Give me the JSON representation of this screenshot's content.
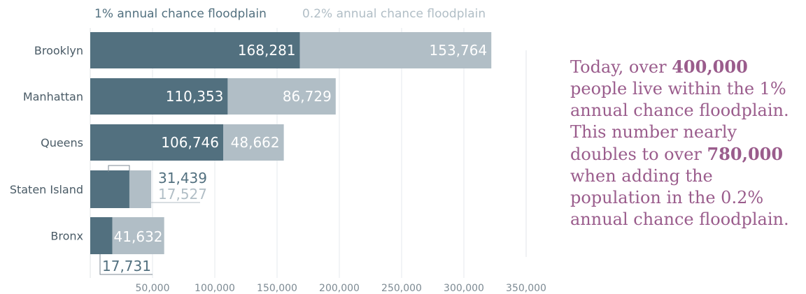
{
  "chart_data": {
    "type": "bar",
    "orientation": "horizontal",
    "stacked": true,
    "categories": [
      "Brooklyn",
      "Manhattan",
      "Queens",
      "Staten Island",
      "Bronx"
    ],
    "series": [
      {
        "name": "1% annual chance floodplain",
        "values": [
          168281,
          110353,
          106746,
          31439,
          17731
        ],
        "color": "#52707f"
      },
      {
        "name": "0.2% annual chance floodplain",
        "values": [
          153764,
          86729,
          48662,
          17527,
          41632
        ],
        "color": "#b1bec6"
      }
    ],
    "value_labels": [
      [
        "168,281",
        "110,353",
        "106,746",
        "31,439",
        "17,731"
      ],
      [
        "153,764",
        "86,729",
        "48,662",
        "17,527",
        "41,632"
      ]
    ],
    "x_ticks": [
      50000,
      100000,
      150000,
      200000,
      250000,
      300000,
      350000
    ],
    "x_tick_labels": [
      "50,000",
      "100,000",
      "150,000",
      "200,000",
      "250,000",
      "300,000",
      "350,000"
    ],
    "xlim": [
      0,
      350000
    ],
    "grid": true,
    "legend": "top",
    "title": "",
    "xlabel": "",
    "ylabel": ""
  },
  "note": {
    "p1": "Today, over ",
    "b1": "400,000",
    "p2": " people live within the 1% annual chance floodplain. This number nearly doubles to over ",
    "b2": "780,000",
    "p3": " when adding the population in the 0.2% annual chance floodplain."
  }
}
